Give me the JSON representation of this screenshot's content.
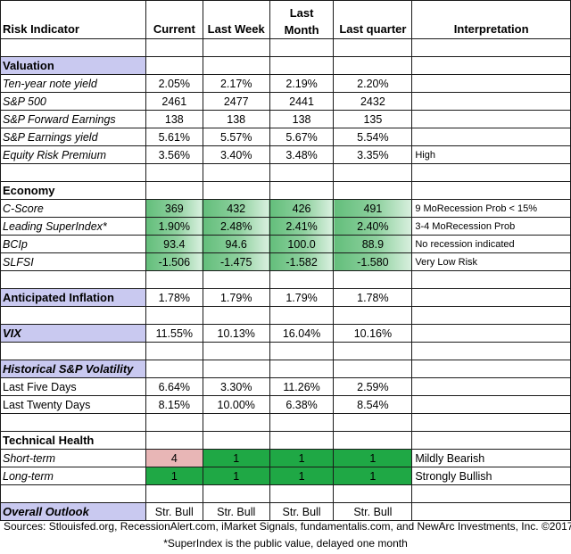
{
  "columns": [
    "Risk Indicator",
    "Current",
    "Last Week",
    "Last Month",
    "Last quarter",
    "Interpretation"
  ],
  "sections": {
    "valuation": "Valuation",
    "economy": "Economy",
    "inflation": "Anticipated Inflation",
    "vix": "VIX",
    "volatility": "Historical  S&P Volatility",
    "technical": "Technical Health",
    "outlook": "Overall Outlook"
  },
  "rows": {
    "tenyear": {
      "label": "Ten-year note yield",
      "v": [
        "2.05%",
        "2.17%",
        "2.19%",
        "2.20%"
      ],
      "i": ""
    },
    "sp500": {
      "label": "S&P 500",
      "v": [
        "2461",
        "2477",
        "2441",
        "2432"
      ],
      "i": ""
    },
    "fwd": {
      "label": "S&P Forward Earnings",
      "v": [
        "138",
        "138",
        "138",
        "135"
      ],
      "i": ""
    },
    "ey": {
      "label": "S&P Earnings yield",
      "v": [
        "5.61%",
        "5.57%",
        "5.67%",
        "5.54%"
      ],
      "i": ""
    },
    "erp": {
      "label": "Equity Risk Premium",
      "v": [
        "3.56%",
        "3.40%",
        "3.48%",
        "3.35%"
      ],
      "i": "High"
    },
    "cscore": {
      "label": "C-Score",
      "v": [
        "369",
        "432",
        "426",
        "491"
      ],
      "i": "9 MoRecession Prob < 15%"
    },
    "lsi": {
      "label": "Leading SuperIndex*",
      "v": [
        "1.90%",
        "2.48%",
        "2.41%",
        "2.40%"
      ],
      "i": "3-4 MoRecession Prob"
    },
    "bcip": {
      "label": "BCIp",
      "v": [
        "93.4",
        "94.6",
        "100.0",
        "88.9"
      ],
      "i": "No recession indicated"
    },
    "slfsi": {
      "label": "SLFSI",
      "v": [
        "-1.506",
        "-1.475",
        "-1.582",
        "-1.580"
      ],
      "i": "Very Low Risk"
    },
    "infl": {
      "v": [
        "1.78%",
        "1.79%",
        "1.79%",
        "1.78%"
      ]
    },
    "vix": {
      "v": [
        "11.55%",
        "10.13%",
        "16.04%",
        "10.16%"
      ]
    },
    "five": {
      "label": "Last Five Days",
      "v": [
        "6.64%",
        "3.30%",
        "11.26%",
        "2.59%"
      ]
    },
    "twenty": {
      "label": "Last Twenty Days",
      "v": [
        "8.15%",
        "10.00%",
        "6.38%",
        "8.54%"
      ]
    },
    "short": {
      "label": "Short-term",
      "v": [
        "4",
        "1",
        "1",
        "1"
      ],
      "i": "Mildly Bearish"
    },
    "long": {
      "label": "Long-term",
      "v": [
        "1",
        "1",
        "1",
        "1"
      ],
      "i": "Strongly Bullish"
    },
    "outlook": {
      "v": [
        "Str. Bull",
        "Str. Bull",
        "Str. Bull",
        "Str. Bull"
      ]
    }
  },
  "footer": {
    "sources": "Sources: Stlouisfed.org, RecessionAlert.com, iMarket Signals, fundamentalis.com, and NewArc Investments, Inc. ©2017",
    "note": "*SuperIndex is the public value, delayed one month"
  }
}
